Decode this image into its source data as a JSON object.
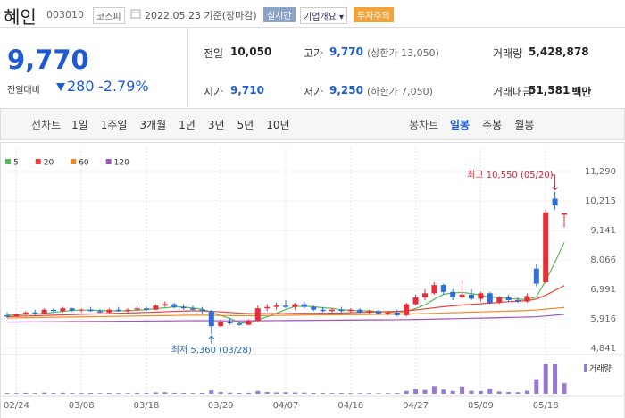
{
  "header": {
    "name": "혜인",
    "code": "003010",
    "market": "코스피",
    "date": "2022.05.23 기준(장마감)",
    "realtime": "실시간",
    "overview": "기업개요",
    "warning": "투자주의"
  },
  "price": {
    "current": "9,770",
    "change_label": "전일대비",
    "change": "280",
    "change_rate": "-2.79%"
  },
  "stats": [
    {
      "label": "전일",
      "value": "10,050"
    },
    {
      "label": "고가",
      "value": "9,770",
      "note": "(상한가 13,050)"
    },
    {
      "label": "거래량",
      "value": "5,428,878"
    },
    {
      "label": "시가",
      "value": "9,710"
    },
    {
      "label": "저가",
      "value": "9,250",
      "note": "(하한가 7,050)"
    },
    {
      "label": "거래대금",
      "value": "51,581",
      "unit": "백만"
    }
  ],
  "tabs": {
    "line_chart": "선차트",
    "line_periods": [
      "1일",
      "1주일",
      "3개월",
      "1년",
      "3년",
      "5년",
      "10년"
    ],
    "candle_chart": "봉차트",
    "candle_periods": [
      "일봉",
      "주봉",
      "월봉"
    ],
    "active_index": 0
  },
  "chart_data": {
    "type": "candlestick",
    "up_color": "#e5303c",
    "down_color": "#2f6fd6",
    "grid": true,
    "categories": [
      null,
      "02/24",
      null,
      null,
      null,
      null,
      null,
      null,
      "03/08",
      null,
      null,
      null,
      null,
      null,
      null,
      "03/18",
      null,
      null,
      null,
      null,
      null,
      null,
      null,
      "03/29",
      null,
      null,
      null,
      null,
      null,
      null,
      "04/07",
      null,
      null,
      null,
      null,
      null,
      null,
      "04/18",
      null,
      null,
      null,
      null,
      null,
      null,
      "04/27",
      null,
      null,
      null,
      null,
      null,
      null,
      "05/09",
      null,
      null,
      null,
      null,
      null,
      null,
      "05/18",
      null,
      null
    ],
    "ohlc": [
      [
        6050,
        6150,
        5950,
        6000
      ],
      [
        6000,
        6100,
        5980,
        6080
      ],
      [
        6080,
        6200,
        6050,
        6150
      ],
      [
        6150,
        6250,
        6050,
        6100
      ],
      [
        6100,
        6300,
        6080,
        6250
      ],
      [
        6250,
        6300,
        6150,
        6200
      ],
      [
        6200,
        6350,
        6150,
        6300
      ],
      [
        6300,
        6320,
        6180,
        6220
      ],
      [
        6220,
        6300,
        6150,
        6250
      ],
      [
        6250,
        6350,
        6180,
        6200
      ],
      [
        6200,
        6280,
        6120,
        6150
      ],
      [
        6150,
        6300,
        6120,
        6250
      ],
      [
        6250,
        6350,
        6180,
        6200
      ],
      [
        6200,
        6300,
        6150,
        6250
      ],
      [
        6250,
        6400,
        6200,
        6300
      ],
      [
        6300,
        6350,
        6200,
        6250
      ],
      [
        6250,
        6450,
        6230,
        6400
      ],
      [
        6400,
        6550,
        6350,
        6450
      ],
      [
        6450,
        6500,
        6300,
        6350
      ],
      [
        6350,
        6450,
        6250,
        6300
      ],
      [
        6300,
        6400,
        6200,
        6250
      ],
      [
        6250,
        6350,
        6100,
        6200
      ],
      [
        6200,
        6250,
        5360,
        5650
      ],
      [
        5650,
        5900,
        5600,
        5800
      ],
      [
        5800,
        5950,
        5700,
        5750
      ],
      [
        5750,
        5850,
        5650,
        5700
      ],
      [
        5700,
        5900,
        5680,
        5850
      ],
      [
        5850,
        6400,
        5800,
        6300
      ],
      [
        6300,
        6450,
        6200,
        6350
      ],
      [
        6350,
        6500,
        6250,
        6400
      ],
      [
        6400,
        6600,
        6300,
        6350
      ],
      [
        6350,
        6500,
        6250,
        6450
      ],
      [
        6450,
        6550,
        6300,
        6350
      ],
      [
        6350,
        6400,
        6200,
        6250
      ],
      [
        6250,
        6350,
        6150,
        6200
      ],
      [
        6200,
        6300,
        6100,
        6250
      ],
      [
        6250,
        6350,
        6150,
        6200
      ],
      [
        6200,
        6300,
        6150,
        6250
      ],
      [
        6250,
        6300,
        6120,
        6150
      ],
      [
        6150,
        6250,
        6080,
        6200
      ],
      [
        6200,
        6250,
        6050,
        6100
      ],
      [
        6100,
        6200,
        6050,
        6150
      ],
      [
        6150,
        6250,
        6000,
        6050
      ],
      [
        6050,
        6500,
        6000,
        6450
      ],
      [
        6450,
        6800,
        6400,
        6700
      ],
      [
        6700,
        7000,
        6600,
        6850
      ],
      [
        6850,
        7250,
        6800,
        7150
      ],
      [
        7150,
        7200,
        6800,
        6900
      ],
      [
        6900,
        7000,
        6600,
        6700
      ],
      [
        6700,
        7300,
        6650,
        6800
      ],
      [
        6800,
        7000,
        6600,
        6650
      ],
      [
        6650,
        6900,
        6550,
        6850
      ],
      [
        6850,
        6900,
        6450,
        6500
      ],
      [
        6500,
        6750,
        6450,
        6700
      ],
      [
        6700,
        6800,
        6550,
        6600
      ],
      [
        6600,
        6700,
        6500,
        6550
      ],
      [
        6550,
        6850,
        6500,
        6750
      ],
      [
        7750,
        7900,
        7100,
        7200
      ],
      [
        7250,
        9900,
        7200,
        9800
      ],
      [
        10300,
        10550,
        9900,
        10050
      ],
      [
        9710,
        9770,
        9250,
        9770
      ]
    ],
    "ylim": [
      4841,
      11290
    ],
    "yticks": [
      {
        "value": 4841,
        "label": "4,841"
      },
      {
        "value": 5916,
        "label": "5,916"
      },
      {
        "value": 6991,
        "label": "6,991"
      },
      {
        "value": 8066,
        "label": "8,066"
      },
      {
        "value": 9141,
        "label": "9,141"
      },
      {
        "value": 10215,
        "label": "10,215"
      },
      {
        "value": 11290,
        "label": "11,290"
      }
    ],
    "series": [
      {
        "name": "5",
        "color": "#5cb85c",
        "values": [
          6050,
          6060,
          6080,
          6100,
          6120,
          6150,
          6190,
          6220,
          6240,
          6240,
          6220,
          6210,
          6210,
          6210,
          6230,
          6250,
          6290,
          6320,
          6350,
          6350,
          6310,
          6270,
          6150,
          6040,
          5930,
          5780,
          5750,
          5880,
          5990,
          6120,
          6250,
          6370,
          6380,
          6360,
          6320,
          6300,
          6250,
          6230,
          6210,
          6210,
          6180,
          6170,
          6130,
          6190,
          6290,
          6430,
          6630,
          6810,
          6860,
          6880,
          6840,
          6780,
          6700,
          6700,
          6650,
          6640,
          6620,
          6720,
          7310,
          7980,
          8710
        ]
      },
      {
        "name": "20",
        "color": "#e8413c",
        "values": [
          6000,
          6010,
          6020,
          6030,
          6040,
          6050,
          6060,
          6070,
          6080,
          6090,
          6100,
          6110,
          6120,
          6130,
          6140,
          6150,
          6160,
          6175,
          6190,
          6200,
          6210,
          6210,
          6190,
          6170,
          6150,
          6130,
          6110,
          6110,
          6110,
          6110,
          6110,
          6115,
          6120,
          6120,
          6120,
          6125,
          6130,
          6140,
          6150,
          6160,
          6170,
          6180,
          6190,
          6210,
          6240,
          6280,
          6320,
          6360,
          6390,
          6420,
          6440,
          6470,
          6490,
          6520,
          6540,
          6560,
          6580,
          6640,
          6780,
          6950,
          7130
        ]
      },
      {
        "name": "60",
        "color": "#f08a24",
        "values": [
          5950,
          5955,
          5960,
          5965,
          5970,
          5975,
          5980,
          5985,
          5990,
          5995,
          6000,
          6005,
          6010,
          6015,
          6020,
          6025,
          6030,
          6035,
          6040,
          6045,
          6050,
          6050,
          6045,
          6040,
          6035,
          6030,
          6030,
          6030,
          6035,
          6040,
          6045,
          6050,
          6055,
          6060,
          6060,
          6060,
          6065,
          6070,
          6070,
          6075,
          6080,
          6080,
          6085,
          6090,
          6100,
          6110,
          6120,
          6130,
          6140,
          6150,
          6160,
          6170,
          6180,
          6190,
          6200,
          6210,
          6220,
          6240,
          6270,
          6300,
          6330
        ]
      },
      {
        "name": "120",
        "color": "#9b59b6",
        "values": [
          5800,
          5802,
          5805,
          5808,
          5810,
          5812,
          5815,
          5818,
          5820,
          5822,
          5825,
          5828,
          5830,
          5832,
          5835,
          5838,
          5840,
          5842,
          5845,
          5848,
          5850,
          5850,
          5848,
          5846,
          5845,
          5845,
          5846,
          5848,
          5850,
          5852,
          5855,
          5858,
          5860,
          5862,
          5865,
          5868,
          5870,
          5872,
          5875,
          5878,
          5880,
          5882,
          5885,
          5890,
          5895,
          5900,
          5908,
          5915,
          5922,
          5930,
          5938,
          5945,
          5952,
          5960,
          5968,
          5975,
          5982,
          5995,
          6020,
          6050,
          6080
        ]
      }
    ],
    "volume": {
      "name": "거래량",
      "color": "#9a78d6",
      "ylim": [
        0,
        17000000
      ],
      "values": [
        400000,
        350000,
        500000,
        380000,
        600000,
        420000,
        550000,
        400000,
        380000,
        450000,
        350000,
        420000,
        380000,
        360000,
        500000,
        400000,
        700000,
        800000,
        500000,
        420000,
        380000,
        450000,
        1800000,
        900000,
        600000,
        450000,
        500000,
        1500000,
        900000,
        700000,
        800000,
        650000,
        600000,
        450000,
        400000,
        380000,
        420000,
        360000,
        350000,
        380000,
        330000,
        350000,
        400000,
        1500000,
        2500000,
        2000000,
        4000000,
        2200000,
        1500000,
        3800000,
        1600000,
        1400000,
        2600000,
        1200000,
        900000,
        800000,
        1600000,
        7500000,
        15500000,
        15600000,
        5428878
      ]
    },
    "annotations": [
      {
        "text": "최고 10,550 (05/20)",
        "color": "#d0213a"
      },
      {
        "text": "최저 5,360 (03/28)",
        "color": "#2a6ab5"
      }
    ]
  }
}
